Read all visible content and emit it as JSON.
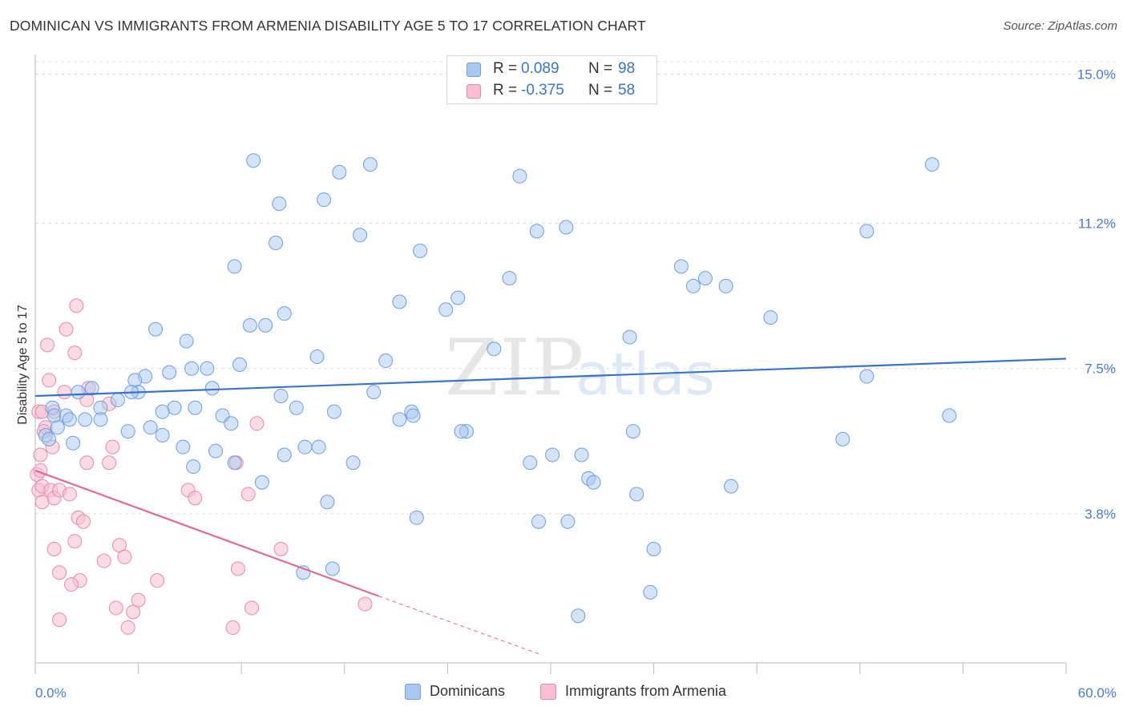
{
  "title": "DOMINICAN VS IMMIGRANTS FROM ARMENIA DISABILITY AGE 5 TO 17 CORRELATION CHART",
  "source": "Source: ZipAtlas.com",
  "watermark": {
    "zip": "ZIP",
    "atlas": "atlas"
  },
  "legend": {
    "rows": [
      {
        "r_label": "R =",
        "r_value": "0.089",
        "n_label": "N =",
        "n_value": "98",
        "color": "#aac8f0",
        "border": "#6f9fdc"
      },
      {
        "r_label": "R =",
        "r_value": "-0.375",
        "n_label": "N =",
        "n_value": "58",
        "color": "#f7bfd0",
        "border": "#e88aa8"
      }
    ]
  },
  "bottom_legend": {
    "items": [
      {
        "label": "Dominicans",
        "color": "#aac8f0",
        "border": "#6f9fdc"
      },
      {
        "label": "Immigrants from Armenia",
        "color": "#f7bfd0",
        "border": "#e88aa8"
      }
    ]
  },
  "chart_data": {
    "type": "scatter",
    "title": "DOMINICAN VS IMMIGRANTS FROM ARMENIA DISABILITY AGE 5 TO 17 CORRELATION CHART",
    "xlabel": "",
    "ylabel": "Disability Age 5 to 17",
    "xlim": [
      0,
      60
    ],
    "ylim": [
      0,
      15.5
    ],
    "x_tick_labels": [
      "0.0%",
      "60.0%"
    ],
    "y_ticks": [
      3.8,
      7.5,
      11.2,
      15.0
    ],
    "y_tick_labels": [
      "3.8%",
      "7.5%",
      "11.2%",
      "15.0%"
    ],
    "grid": "horizontal dashed",
    "colors": {
      "dominicans": "#3b74c6",
      "armenia": "#e06a94",
      "dominicans_fill": "#aac8f0",
      "armenia_fill": "#f7bfd0"
    },
    "series": [
      {
        "name": "Dominicans",
        "trend": {
          "x": [
            0,
            60
          ],
          "y": [
            6.8,
            7.75
          ]
        },
        "points": [
          [
            12.7,
            12.8
          ],
          [
            17.7,
            12.5
          ],
          [
            19.5,
            12.7
          ],
          [
            28.2,
            12.4
          ],
          [
            52.2,
            12.7
          ],
          [
            14.2,
            11.7
          ],
          [
            16.8,
            11.8
          ],
          [
            29.2,
            11.0
          ],
          [
            30.9,
            11.1
          ],
          [
            48.4,
            11.0
          ],
          [
            14.0,
            10.7
          ],
          [
            18.9,
            10.9
          ],
          [
            22.4,
            10.5
          ],
          [
            11.6,
            10.1
          ],
          [
            27.6,
            9.8
          ],
          [
            37.6,
            10.1
          ],
          [
            40.2,
            9.6
          ],
          [
            39.0,
            9.8
          ],
          [
            38.3,
            9.6
          ],
          [
            21.2,
            9.2
          ],
          [
            23.9,
            9.0
          ],
          [
            24.6,
            9.3
          ],
          [
            14.5,
            8.9
          ],
          [
            12.5,
            8.6
          ],
          [
            13.4,
            8.6
          ],
          [
            7.0,
            8.5
          ],
          [
            42.8,
            8.8
          ],
          [
            48.4,
            7.3
          ],
          [
            34.6,
            8.3
          ],
          [
            8.8,
            8.2
          ],
          [
            26.7,
            8.0
          ],
          [
            16.4,
            7.8
          ],
          [
            20.4,
            7.7
          ],
          [
            11.9,
            7.6
          ],
          [
            10.0,
            7.5
          ],
          [
            9.1,
            7.5
          ],
          [
            7.8,
            7.4
          ],
          [
            6.4,
            7.3
          ],
          [
            5.8,
            7.2
          ],
          [
            3.3,
            7.0
          ],
          [
            2.5,
            6.9
          ],
          [
            6.0,
            6.9
          ],
          [
            5.6,
            6.9
          ],
          [
            10.3,
            7.0
          ],
          [
            14.3,
            6.8
          ],
          [
            19.7,
            6.9
          ],
          [
            21.9,
            6.4
          ],
          [
            4.8,
            6.7
          ],
          [
            3.8,
            6.5
          ],
          [
            15.2,
            6.5
          ],
          [
            8.1,
            6.5
          ],
          [
            9.3,
            6.5
          ],
          [
            10.9,
            6.3
          ],
          [
            11.4,
            6.1
          ],
          [
            7.4,
            6.4
          ],
          [
            17.4,
            6.4
          ],
          [
            21.2,
            6.2
          ],
          [
            22.0,
            6.3
          ],
          [
            1.0,
            6.5
          ],
          [
            1.1,
            6.3
          ],
          [
            1.8,
            6.3
          ],
          [
            2.0,
            6.2
          ],
          [
            2.9,
            6.2
          ],
          [
            3.8,
            6.2
          ],
          [
            6.7,
            6.0
          ],
          [
            1.3,
            6.0
          ],
          [
            0.6,
            5.8
          ],
          [
            0.8,
            5.7
          ],
          [
            5.4,
            5.9
          ],
          [
            7.4,
            5.8
          ],
          [
            25.1,
            5.9
          ],
          [
            24.8,
            5.9
          ],
          [
            34.8,
            5.9
          ],
          [
            47.0,
            5.7
          ],
          [
            53.2,
            6.3
          ],
          [
            2.2,
            5.6
          ],
          [
            8.6,
            5.5
          ],
          [
            10.5,
            5.4
          ],
          [
            15.7,
            5.5
          ],
          [
            16.5,
            5.5
          ],
          [
            14.5,
            5.3
          ],
          [
            30.1,
            5.3
          ],
          [
            31.8,
            5.3
          ],
          [
            28.8,
            5.1
          ],
          [
            9.2,
            5.0
          ],
          [
            11.6,
            5.1
          ],
          [
            18.5,
            5.1
          ],
          [
            32.2,
            4.7
          ],
          [
            32.5,
            4.6
          ],
          [
            40.5,
            4.5
          ],
          [
            13.2,
            4.6
          ],
          [
            35.0,
            4.3
          ],
          [
            17.0,
            4.1
          ],
          [
            22.2,
            3.7
          ],
          [
            29.3,
            3.6
          ],
          [
            31.0,
            3.6
          ],
          [
            36.0,
            2.9
          ],
          [
            17.3,
            2.4
          ],
          [
            15.6,
            2.3
          ],
          [
            35.8,
            1.8
          ],
          [
            31.6,
            1.2
          ]
        ]
      },
      {
        "name": "Immigrants from Armenia",
        "trend": {
          "x": [
            0,
            20
          ],
          "y": [
            4.9,
            1.7
          ]
        },
        "trend_dashed": {
          "x": [
            20,
            29.5
          ],
          "y": [
            1.7,
            0.2
          ]
        },
        "points": [
          [
            2.4,
            9.1
          ],
          [
            1.8,
            8.5
          ],
          [
            0.7,
            8.1
          ],
          [
            2.3,
            7.9
          ],
          [
            0.8,
            7.2
          ],
          [
            1.7,
            6.9
          ],
          [
            3.0,
            6.7
          ],
          [
            3.1,
            7.0
          ],
          [
            0.2,
            6.4
          ],
          [
            0.4,
            6.4
          ],
          [
            1.1,
            6.4
          ],
          [
            4.3,
            6.6
          ],
          [
            0.6,
            6.0
          ],
          [
            0.5,
            5.9
          ],
          [
            12.9,
            6.1
          ],
          [
            0.3,
            5.3
          ],
          [
            1.0,
            5.5
          ],
          [
            3.0,
            5.1
          ],
          [
            4.5,
            5.5
          ],
          [
            0.1,
            4.8
          ],
          [
            0.3,
            4.9
          ],
          [
            4.3,
            5.1
          ],
          [
            11.7,
            5.1
          ],
          [
            0.2,
            4.4
          ],
          [
            0.4,
            4.5
          ],
          [
            0.9,
            4.4
          ],
          [
            1.1,
            4.2
          ],
          [
            1.4,
            4.4
          ],
          [
            2.0,
            4.3
          ],
          [
            8.9,
            4.4
          ],
          [
            9.3,
            4.2
          ],
          [
            12.4,
            4.3
          ],
          [
            0.4,
            4.1
          ],
          [
            2.5,
            3.7
          ],
          [
            2.8,
            3.6
          ],
          [
            2.3,
            3.1
          ],
          [
            4.9,
            3.0
          ],
          [
            1.1,
            2.9
          ],
          [
            14.3,
            2.9
          ],
          [
            5.2,
            2.7
          ],
          [
            4.0,
            2.6
          ],
          [
            1.4,
            2.3
          ],
          [
            11.8,
            2.4
          ],
          [
            7.1,
            2.1
          ],
          [
            2.6,
            2.1
          ],
          [
            2.1,
            2.0
          ],
          [
            4.7,
            1.4
          ],
          [
            5.7,
            1.3
          ],
          [
            12.6,
            1.4
          ],
          [
            19.2,
            1.5
          ],
          [
            1.4,
            1.1
          ],
          [
            5.4,
            0.9
          ],
          [
            11.5,
            0.9
          ],
          [
            6.0,
            1.6
          ]
        ]
      }
    ]
  }
}
